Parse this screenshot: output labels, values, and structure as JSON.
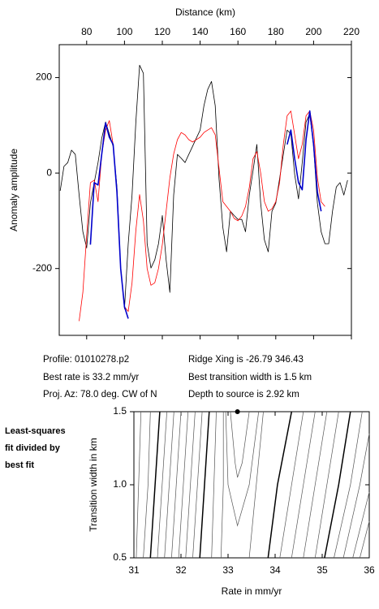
{
  "chart_data": [
    {
      "type": "line",
      "x_label": "Distance (km)",
      "y_label": "Anomaly amplitude",
      "xlim": [
        65.5,
        220
      ],
      "xticks": [
        80,
        100,
        120,
        140,
        160,
        180,
        200,
        220
      ],
      "ylim": [
        -340,
        269
      ],
      "yticks": [
        -200,
        0,
        200
      ],
      "x": [
        66,
        68,
        70,
        72,
        74,
        76,
        78,
        80,
        82,
        84,
        86,
        88,
        90,
        92,
        94,
        96,
        98,
        100,
        102,
        104,
        106,
        108,
        110,
        112,
        114,
        116,
        118,
        120,
        122,
        124,
        126,
        128,
        130,
        132,
        134,
        136,
        138,
        140,
        142,
        144,
        146,
        148,
        150,
        152,
        154,
        156,
        158,
        160,
        162,
        164,
        166,
        168,
        170,
        172,
        174,
        176,
        178,
        180,
        182,
        184,
        186,
        188,
        190,
        192,
        194,
        196,
        198,
        200,
        202,
        204,
        206,
        208,
        210,
        212,
        214,
        216,
        218
      ],
      "series": [
        {
          "color": "#000000",
          "width": 0.8,
          "values": [
            -37,
            14,
            22,
            48,
            39,
            -46,
            -123,
            -157,
            -63,
            -20,
            22,
            73,
            107,
            82,
            56,
            -29,
            -199,
            -284,
            -148,
            -46,
            107,
            226,
            209,
            -148,
            -199,
            -182,
            -148,
            -89,
            -182,
            -250,
            -46,
            39,
            31,
            22,
            39,
            56,
            73,
            90,
            141,
            175,
            192,
            141,
            -12,
            -114,
            -165,
            -80,
            -89,
            -97,
            -97,
            -123,
            -46,
            5,
            60,
            -63,
            -140,
            -165,
            -80,
            -63,
            -12,
            39,
            90,
            82,
            -3,
            -54,
            22,
            107,
            124,
            56,
            -63,
            -123,
            -148,
            -148,
            -80,
            -29,
            -20,
            -46,
            -15
          ]
        },
        {
          "color": "#ff0000",
          "width": 0.8,
          "values": [
            null,
            null,
            null,
            null,
            null,
            -310,
            -250,
            -130,
            -20,
            -15,
            -60,
            40,
            90,
            110,
            60,
            -40,
            -200,
            -280,
            -290,
            -230,
            -120,
            -45,
            -100,
            -200,
            -235,
            -230,
            -200,
            -150,
            -80,
            -10,
            40,
            70,
            85,
            80,
            70,
            65,
            70,
            75,
            85,
            90,
            95,
            80,
            10,
            -60,
            -70,
            -80,
            -95,
            -100,
            -90,
            -70,
            -30,
            30,
            45,
            0,
            -60,
            -80,
            -75,
            -60,
            -20,
            60,
            120,
            130,
            80,
            30,
            60,
            120,
            130,
            90,
            -10,
            -60,
            -70,
            null,
            null,
            null,
            null,
            null,
            null
          ]
        },
        {
          "color": "#0000cc",
          "width": 1.6,
          "values": [
            null,
            null,
            null,
            null,
            null,
            null,
            null,
            null,
            -150,
            -20,
            -25,
            40,
            105,
            75,
            60,
            -40,
            -200,
            -280,
            -305,
            null,
            null,
            null,
            null,
            null,
            null,
            null,
            null,
            null,
            null,
            null,
            null,
            null,
            null,
            null,
            null,
            null,
            null,
            null,
            null,
            null,
            null,
            null,
            null,
            null,
            null,
            null,
            null,
            null,
            null,
            null,
            null,
            null,
            null,
            null,
            null,
            null,
            null,
            null,
            null,
            null,
            60,
            90,
            30,
            -20,
            -35,
            70,
            130,
            60,
            -40,
            -80,
            null,
            null,
            null,
            null,
            null,
            null,
            null
          ]
        }
      ],
      "annotations": [
        "Profile: 01010278.p2",
        "Best rate is 33.2 mm/yr",
        "Proj. Az: 78.0 deg. CW of N",
        "Ridge Xing is -26.79 346.43",
        "Best transition width is 1.5 km",
        "Depth to source is   2.92 km"
      ]
    },
    {
      "type": "contour",
      "title_lines": [
        "Least-squares",
        "fit divided by",
        "best fit"
      ],
      "x_label": "Rate in mm/yr",
      "y_label": "Transition width in km",
      "xlim": [
        31,
        36
      ],
      "xticks": [
        31,
        32,
        33,
        34,
        35,
        36
      ],
      "ylim": [
        0.5,
        1.5
      ],
      "yticks": [
        {
          "value": 0.5,
          "label": "0.5"
        },
        {
          "value": 1.0,
          "label": "1.0"
        },
        {
          "value": 1.5,
          "label": "1.5"
        }
      ],
      "best": {
        "x": 33.2,
        "y": 1.5
      },
      "contours": [
        {
          "x": [
            31.15,
            31.1,
            31.05
          ],
          "y": [
            1.5,
            1.0,
            0.5
          ],
          "bold": false
        },
        {
          "x": [
            31.35,
            31.3,
            31.2
          ],
          "y": [
            1.5,
            1.0,
            0.5
          ],
          "bold": false
        },
        {
          "x": [
            31.55,
            31.45,
            31.35
          ],
          "y": [
            1.5,
            1.0,
            0.5
          ],
          "bold": true
        },
        {
          "x": [
            31.7,
            31.6,
            31.5
          ],
          "y": [
            1.5,
            1.0,
            0.5
          ],
          "bold": false
        },
        {
          "x": [
            31.85,
            31.75,
            31.65
          ],
          "y": [
            1.5,
            1.0,
            0.5
          ],
          "bold": false
        },
        {
          "x": [
            32.0,
            31.9,
            31.8
          ],
          "y": [
            1.5,
            1.0,
            0.5
          ],
          "bold": false
        },
        {
          "x": [
            32.15,
            32.05,
            31.95
          ],
          "y": [
            1.5,
            1.0,
            0.5
          ],
          "bold": false
        },
        {
          "x": [
            32.3,
            32.2,
            32.1
          ],
          "y": [
            1.5,
            1.0,
            0.5
          ],
          "bold": false
        },
        {
          "x": [
            32.45,
            32.35,
            32.25
          ],
          "y": [
            1.5,
            1.0,
            0.5
          ],
          "bold": false
        },
        {
          "x": [
            32.6,
            32.5,
            32.4
          ],
          "y": [
            1.5,
            1.0,
            0.5
          ],
          "bold": true
        },
        {
          "x": [
            32.75,
            32.7,
            32.65
          ],
          "y": [
            1.5,
            1.0,
            0.5
          ],
          "bold": false
        },
        {
          "x": [
            32.9,
            32.9,
            32.85
          ],
          "y": [
            1.5,
            1.0,
            0.5
          ],
          "bold": false
        },
        {
          "x": [
            32.95,
            33.0,
            33.2,
            33.45,
            33.65
          ],
          "y": [
            1.5,
            1.0,
            0.72,
            1.0,
            1.5
          ],
          "bold": false
        },
        {
          "x": [
            33.05,
            33.15,
            33.2,
            33.3,
            33.45
          ],
          "y": [
            1.5,
            1.15,
            1.05,
            1.15,
            1.5
          ],
          "bold": false
        },
        {
          "x": [
            33.45,
            33.6,
            33.75
          ],
          "y": [
            0.5,
            1.0,
            1.5
          ],
          "bold": false
        },
        {
          "x": [
            33.85,
            34.05,
            34.35
          ],
          "y": [
            0.5,
            1.0,
            1.5
          ],
          "bold": true
        },
        {
          "x": [
            34.1,
            34.35,
            34.6
          ],
          "y": [
            0.5,
            1.0,
            1.5
          ],
          "bold": false
        },
        {
          "x": [
            34.35,
            34.6,
            34.85
          ],
          "y": [
            0.5,
            1.0,
            1.5
          ],
          "bold": false
        },
        {
          "x": [
            34.6,
            34.85,
            35.1
          ],
          "y": [
            0.5,
            1.0,
            1.5
          ],
          "bold": false
        },
        {
          "x": [
            34.85,
            35.1,
            35.35
          ],
          "y": [
            0.5,
            1.0,
            1.5
          ],
          "bold": false
        },
        {
          "x": [
            35.05,
            35.35,
            35.6
          ],
          "y": [
            0.5,
            1.0,
            1.5
          ],
          "bold": true
        },
        {
          "x": [
            35.25,
            35.6,
            35.85
          ],
          "y": [
            0.5,
            1.0,
            1.5
          ],
          "bold": false
        },
        {
          "x": [
            35.45,
            35.8,
            36
          ],
          "y": [
            0.5,
            1.0,
            1.35
          ],
          "bold": false
        },
        {
          "x": [
            35.65,
            36
          ],
          "y": [
            0.5,
            0.95
          ],
          "bold": false
        },
        {
          "x": [
            35.8,
            36
          ],
          "y": [
            0.5,
            0.75
          ],
          "bold": false
        }
      ]
    }
  ]
}
